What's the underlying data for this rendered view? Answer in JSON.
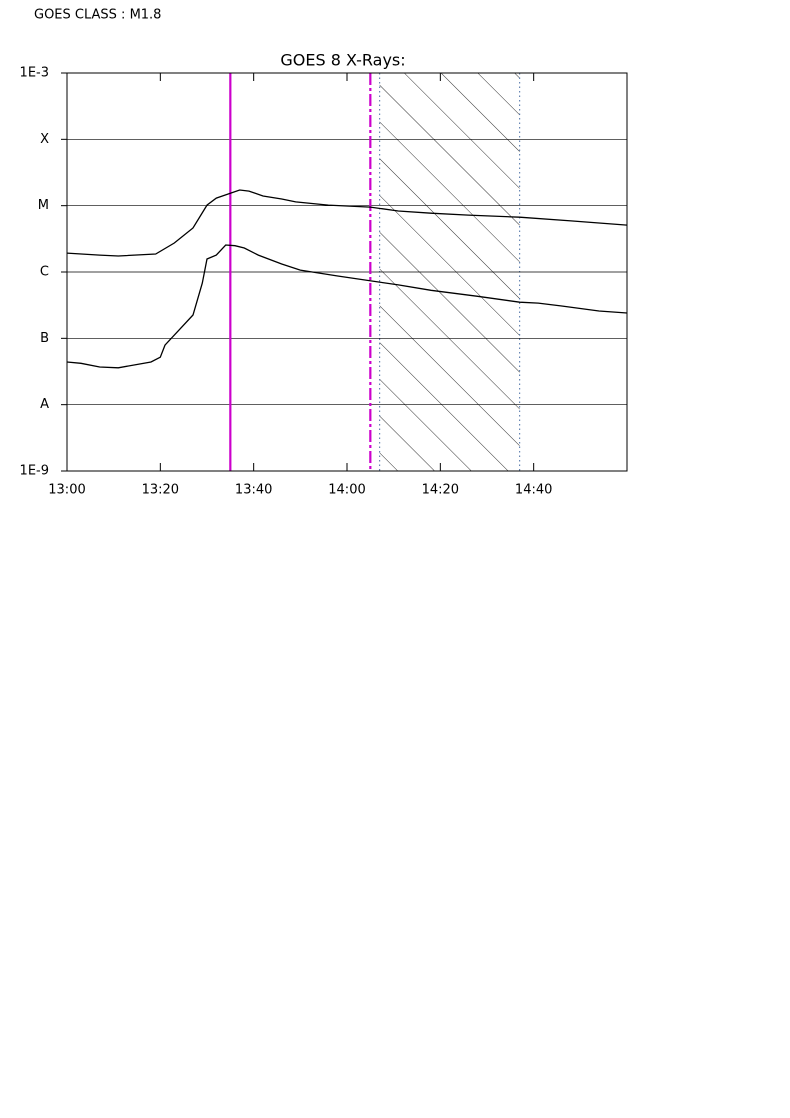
{
  "header": "GOES CLASS : M1.8",
  "chart_data": {
    "type": "line",
    "title": "GOES 8 X-Rays:",
    "xlim": [
      "13:00",
      "15:00"
    ],
    "xticks": [
      "13:00",
      "13:20",
      "13:40",
      "14:00",
      "14:20",
      "14:40"
    ],
    "ylim": [
      1e-09,
      0.001
    ],
    "log_y": true,
    "grid": true,
    "yticks": [
      {
        "value": 1e-09,
        "label": "1E-9"
      },
      {
        "value": 1e-08,
        "label": "A"
      },
      {
        "value": 1e-07,
        "label": "B"
      },
      {
        "value": 1e-06,
        "label": "C"
      },
      {
        "value": 1e-05,
        "label": "M"
      },
      {
        "value": 0.0001,
        "label": "X"
      },
      {
        "value": 0.001,
        "label": "1E-3"
      }
    ],
    "series": [
      {
        "color": "#000000",
        "x": [
          "13:00",
          "13:07",
          "13:11",
          "13:19",
          "13:23",
          "13:27",
          "13:30",
          "13:32",
          "13:37",
          "13:39",
          "13:42",
          "13:46",
          "13:49",
          "13:56",
          "14:05",
          "14:11",
          "14:18",
          "14:26",
          "14:37",
          "14:48",
          "15:00"
        ],
        "values": [
          1.93e-06,
          1.8e-06,
          1.74e-06,
          1.87e-06,
          2.74e-06,
          4.6e-06,
          1.02e-05,
          1.3e-05,
          1.72e-05,
          1.66e-05,
          1.4e-05,
          1.26e-05,
          1.14e-05,
          1.02e-05,
          9.5e-06,
          8.3e-06,
          7.7e-06,
          7.2e-06,
          6.7e-06,
          5.9e-06,
          5.1e-06
        ]
      },
      {
        "color": "#000000",
        "x": [
          "13:00",
          "13:03",
          "13:07",
          "13:11",
          "13:18",
          "13:20",
          "13:21",
          "13:24",
          "13:27",
          "13:29",
          "13:30",
          "13:32",
          "13:34",
          "13:36",
          "13:38",
          "13:41",
          "13:46",
          "13:50",
          "13:58",
          "14:11",
          "14:18",
          "14:28",
          "14:37",
          "14:41",
          "14:46",
          "14:54",
          "15:00"
        ],
        "values": [
          4.4e-08,
          4.2e-08,
          3.7e-08,
          3.6e-08,
          4.4e-08,
          5.2e-08,
          7.9e-08,
          1.33e-07,
          2.25e-07,
          6.8e-07,
          1.57e-06,
          1.8e-06,
          2.55e-06,
          2.49e-06,
          2.3e-06,
          1.8e-06,
          1.32e-06,
          1.07e-06,
          8.7e-07,
          6.4e-07,
          5.3e-07,
          4.3e-07,
          3.5e-07,
          3.4e-07,
          3.07e-07,
          2.58e-07,
          2.41e-07
        ]
      }
    ],
    "markers": [
      {
        "x": "13:35",
        "color": "#cc00cc",
        "style": "solid"
      },
      {
        "x": "14:05",
        "color": "#cc00cc",
        "style": "dashed"
      }
    ],
    "shaded": {
      "x": [
        "14:07",
        "14:37"
      ],
      "color": "#4a6fa5"
    }
  }
}
